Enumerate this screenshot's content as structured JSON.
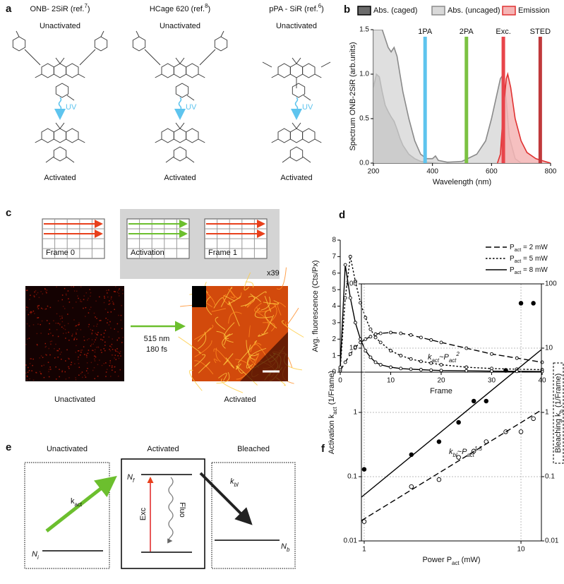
{
  "panel_a": {
    "label": "a",
    "compounds": [
      {
        "name": [
          {
            "text": "ONB- 2SiR (ref."
          },
          {
            "sup": "7"
          },
          {
            "text": ")"
          }
        ],
        "before": "Unactivated",
        "trigger": "UV",
        "after": "Activated"
      },
      {
        "name": [
          {
            "text": "HCage 620 (ref."
          },
          {
            "sup": "8"
          },
          {
            "text": ")"
          }
        ],
        "before": "Unactivated",
        "trigger": "UV",
        "after": "Activated"
      },
      {
        "name": [
          {
            "text": "pPA - SiR (ref."
          },
          {
            "sup": "6"
          },
          {
            "text": ")"
          }
        ],
        "before": "Unactivated",
        "trigger": "UV",
        "after": "Activated"
      }
    ]
  },
  "panel_c": {
    "label": "c",
    "frames": [
      "Frame 0",
      "Activation",
      "Frame 1"
    ],
    "repeat": "x39",
    "laser": [
      "515 nm",
      "180 fs"
    ],
    "images": [
      "Unactivated",
      "Activated"
    ]
  },
  "panel_e": {
    "label": "e",
    "states": [
      "Unactivated",
      "Activated",
      "Bleached"
    ],
    "k_act": [
      {
        "text": "k"
      },
      {
        "sub": "act"
      }
    ],
    "N_f": [
      {
        "text": "N"
      },
      {
        "sub": "f"
      }
    ],
    "N_i": [
      {
        "text": "N"
      },
      {
        "sub": "i"
      }
    ],
    "exc": "Exc",
    "fluo": "Fluo",
    "k_bl": [
      {
        "text": "k"
      },
      {
        "sub": "bl"
      }
    ],
    "N_b": [
      {
        "text": "N"
      },
      {
        "sub": "b"
      }
    ]
  },
  "chart_data": [
    {
      "panel": "b",
      "type": "area",
      "xlabel": "Wavelength (nm)",
      "ylabel": "Spectrum ONB-2SiR (arb.units)",
      "xlim": [
        200,
        800
      ],
      "xticks": [
        200,
        400,
        600,
        800
      ],
      "ylim": [
        0,
        1.5
      ],
      "yticks": [
        {
          "value": 0,
          "label": "0.0"
        },
        0.5,
        {
          "value": 1,
          "label": "1.0"
        },
        1.5
      ],
      "series": [
        {
          "name": "Abs. (caged)",
          "color": "#000000",
          "fill": "#6b6b6b",
          "x": [
            200,
            210,
            220,
            230,
            240,
            250,
            260,
            270,
            280,
            290,
            300,
            320,
            340,
            360,
            380,
            400,
            420
          ],
          "values": [
            0.85,
            1.0,
            0.97,
            0.8,
            0.65,
            0.58,
            0.52,
            0.47,
            0.38,
            0.28,
            0.2,
            0.1,
            0.05,
            0.02,
            0.01,
            0.005,
            0
          ]
        },
        {
          "name": "Abs. (uncaged)",
          "color": "#8a8a8a",
          "fill": "#d9d9d9",
          "x": [
            200,
            230,
            250,
            260,
            270,
            280,
            290,
            300,
            320,
            340,
            360,
            380,
            400,
            410,
            420,
            450,
            500,
            550,
            580,
            600,
            620,
            630,
            640,
            650,
            660,
            680,
            700
          ],
          "values": [
            1.5,
            1.5,
            1.3,
            1.25,
            1.3,
            1.2,
            1.0,
            0.8,
            0.5,
            0.25,
            0.1,
            0.05,
            0.05,
            0.08,
            0.03,
            0.01,
            0.02,
            0.1,
            0.25,
            0.5,
            0.8,
            0.95,
            1.0,
            0.7,
            0.3,
            0.05,
            0
          ]
        },
        {
          "name": "Emission",
          "color": "#e03131",
          "fill": "#f5b5b5",
          "x": [
            620,
            630,
            640,
            650,
            655,
            665,
            680,
            700,
            720,
            750,
            780,
            800
          ],
          "values": [
            0,
            0.1,
            0.6,
            0.95,
            1.0,
            0.85,
            0.5,
            0.25,
            0.12,
            0.05,
            0.02,
            0
          ]
        }
      ],
      "lines": [
        {
          "label": "1PA",
          "x": 375,
          "color": "#5ec4ee"
        },
        {
          "label": "2PA",
          "x": 515,
          "color": "#7cc242"
        },
        {
          "label": "Exc.",
          "x": 640,
          "color": "#e8444a"
        },
        {
          "label": "STED",
          "x": 765,
          "color": "#c0393b"
        }
      ]
    },
    {
      "panel": "d",
      "type": "line",
      "xlabel": "Frame",
      "ylabel": "Avg. fluorescence (Cts/Px)",
      "xlim": [
        0,
        40
      ],
      "xticks": [
        0,
        10,
        20,
        30,
        40
      ],
      "ylim": [
        0,
        8
      ],
      "yticks": [
        0,
        1,
        2,
        3,
        4,
        5,
        6,
        7,
        8
      ],
      "x": [
        0,
        1,
        2,
        3,
        4,
        5,
        6,
        7,
        8,
        10,
        12,
        14,
        16,
        18,
        20,
        25,
        30,
        35,
        40
      ],
      "marker": "open-circle",
      "series": [
        {
          "name": [
            {
              "text": "P"
            },
            {
              "sub": "act"
            },
            {
              "text": " = 2 mW"
            }
          ],
          "color": "#000000",
          "line_style": "dashed",
          "values": [
            0.1,
            0.6,
            1.1,
            1.5,
            1.8,
            2.0,
            2.15,
            2.3,
            2.35,
            2.4,
            2.35,
            2.25,
            2.1,
            1.95,
            1.8,
            1.45,
            1.1,
            0.85,
            0.6
          ]
        },
        {
          "name": [
            {
              "text": "P"
            },
            {
              "sub": "act"
            },
            {
              "text": " = 5 mW"
            }
          ],
          "color": "#000000",
          "line_style": "dotted",
          "values": [
            0.2,
            4.5,
            7.0,
            5.5,
            4.2,
            3.3,
            2.6,
            2.1,
            1.8,
            1.3,
            1.0,
            0.8,
            0.65,
            0.55,
            0.45,
            0.3,
            0.22,
            0.18,
            0.15
          ]
        },
        {
          "name": [
            {
              "text": "P"
            },
            {
              "sub": "act"
            },
            {
              "text": " = 8 mW"
            }
          ],
          "color": "#000000",
          "line_style": "solid",
          "values": [
            0.3,
            6.5,
            4.5,
            3.0,
            2.0,
            1.3,
            0.9,
            0.6,
            0.45,
            0.3,
            0.22,
            0.18,
            0.15,
            0.12,
            0.1,
            0.08,
            0.06,
            0.05,
            0.04
          ]
        }
      ]
    },
    {
      "panel": "f",
      "type": "scatter",
      "xlog": true,
      "ylog": true,
      "grid": true,
      "xlabel": [
        {
          "text": "Power P"
        },
        {
          "sub": "act"
        },
        {
          "text": " (mW)"
        }
      ],
      "ylabel": [
        {
          "text": "Activation k"
        },
        {
          "sub": "act"
        },
        {
          "text": " (1/Frame)"
        }
      ],
      "y2label": [
        {
          "text": "Bleaching k"
        },
        {
          "sub": "b"
        },
        {
          "text": " (1/Frame)"
        }
      ],
      "xlim": [
        0.96,
        13.5
      ],
      "xticks": [
        1,
        10
      ],
      "ylim": [
        0.01,
        100
      ],
      "yticks": [
        0.01,
        0.1,
        1,
        10,
        100
      ],
      "y2lim": [
        0.01,
        100
      ],
      "y2ticks": [
        0.01,
        0.1,
        1,
        10,
        100
      ],
      "series": [
        {
          "marker": "filled-circle",
          "color": "#000000",
          "x": [
            1,
            2,
            3,
            4,
            5,
            6,
            8,
            10,
            12
          ],
          "values": [
            0.13,
            0.22,
            0.35,
            0.7,
            1.5,
            1.5,
            4.5,
            50,
            50
          ]
        },
        {
          "marker": "open-circle",
          "color": "#000000",
          "axis": "y2",
          "x": [
            1,
            2,
            3,
            4,
            5,
            6,
            8,
            10,
            12
          ],
          "values": [
            0.02,
            0.07,
            0.09,
            0.2,
            0.25,
            0.35,
            0.5,
            0.5,
            0.8
          ]
        },
        {
          "line_style": "solid",
          "color": "#000000",
          "x": [
            0.96,
            13.5
          ],
          "values": [
            0.048,
            9.5
          ]
        },
        {
          "line_style": "dashed",
          "color": "#000000",
          "axis": "y2",
          "x": [
            0.96,
            13.5
          ],
          "values": [
            0.0207,
            1.09
          ]
        }
      ],
      "annotations": [
        [
          {
            "text": "k"
          },
          {
            "sub": "act"
          },
          {
            "text": "~P"
          },
          {
            "sub": "act"
          },
          {
            "sup": "2"
          }
        ],
        [
          {
            "text": "k"
          },
          {
            "sub": "bl"
          },
          {
            "text": "~P"
          },
          {
            "sub": "act"
          },
          {
            "sup": "1.5"
          }
        ]
      ]
    }
  ]
}
